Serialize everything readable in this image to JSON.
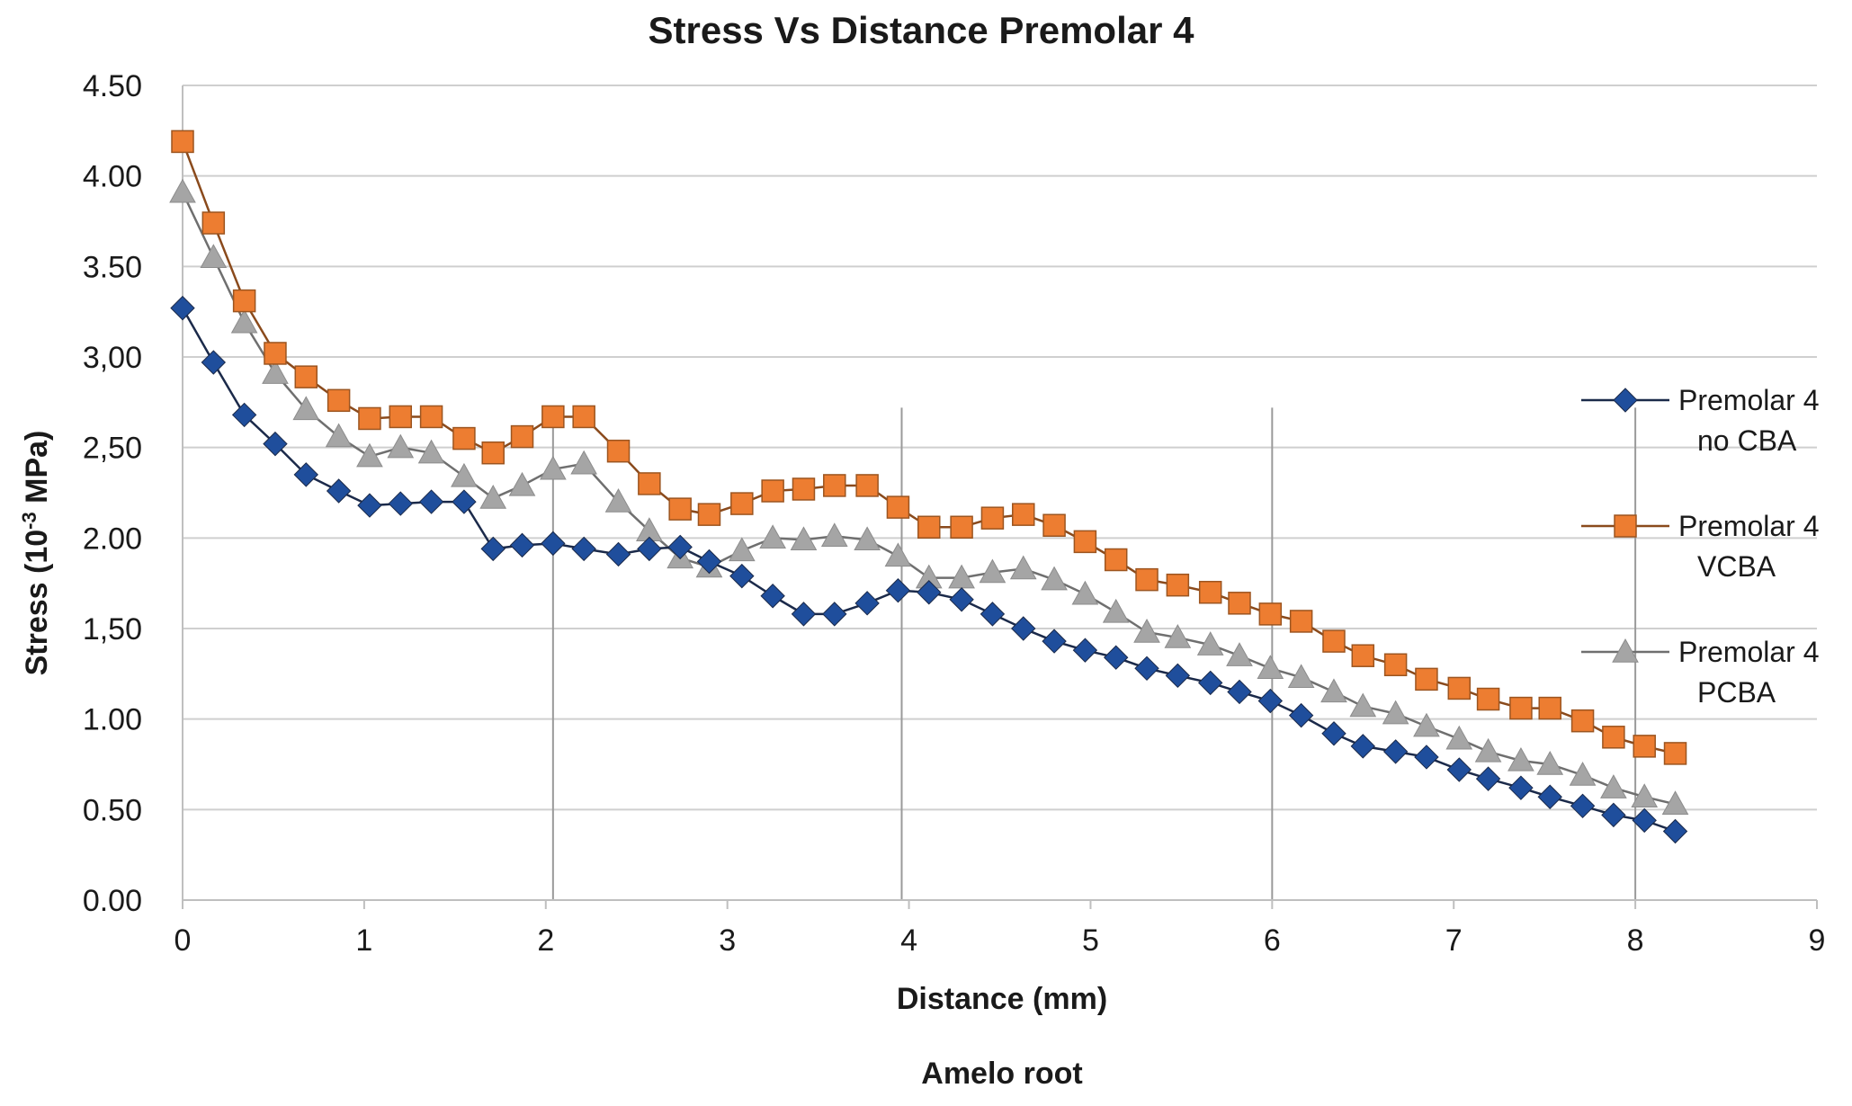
{
  "chart_data": {
    "type": "line",
    "title": "Stress Vs Distance  Premolar 4",
    "xlabel": "Distance (mm)",
    "ylabel_prefix": "Stress (10",
    "ylabel_exp": "-3",
    "ylabel_suffix": " MPa)",
    "sub_label": "Amelo root",
    "xlim": [
      0,
      9
    ],
    "ylim": [
      0,
      4.5
    ],
    "x_ticks": [
      "0",
      "1",
      "2",
      "3",
      "4",
      "5",
      "6",
      "7",
      "8",
      "9"
    ],
    "y_ticks": [
      "0.00",
      "0.50",
      "1.00",
      "1,50",
      "2.00",
      "2,50",
      "3,00",
      "3.50",
      "4.00",
      "4.50"
    ],
    "grid": "horizontal",
    "reference_lines_x": [
      2.04,
      3.96,
      6.0,
      8.0
    ],
    "legend_position": "right",
    "series": [
      {
        "name_line1": "Premolar 4",
        "name_line2": "no CBA",
        "color": "#1f4e9c",
        "line_color": "#1b2a4a",
        "marker": "diamond",
        "x": [
          0,
          0.17,
          0.34,
          0.51,
          0.68,
          0.86,
          1.03,
          1.2,
          1.37,
          1.55,
          1.71,
          1.87,
          2.04,
          2.21,
          2.4,
          2.57,
          2.74,
          2.9,
          3.08,
          3.25,
          3.42,
          3.59,
          3.77,
          3.94,
          4.11,
          4.29,
          4.46,
          4.63,
          4.8,
          4.97,
          5.14,
          5.31,
          5.48,
          5.66,
          5.82,
          5.99,
          6.16,
          6.34,
          6.5,
          6.68,
          6.85,
          7.03,
          7.19,
          7.37,
          7.53,
          7.71,
          7.88,
          8.05,
          8.22
        ],
        "y": [
          3.27,
          2.97,
          2.68,
          2.52,
          2.35,
          2.26,
          2.18,
          2.19,
          2.2,
          2.2,
          1.94,
          1.96,
          1.97,
          1.94,
          1.91,
          1.94,
          1.95,
          1.87,
          1.79,
          1.68,
          1.58,
          1.58,
          1.64,
          1.71,
          1.7,
          1.66,
          1.58,
          1.5,
          1.43,
          1.38,
          1.34,
          1.28,
          1.24,
          1.2,
          1.15,
          1.1,
          1.02,
          0.92,
          0.85,
          0.82,
          0.79,
          0.72,
          0.67,
          0.62,
          0.57,
          0.52,
          0.47,
          0.44,
          0.38
        ]
      },
      {
        "name_line1": "Premolar 4",
        "name_line2": "VCBA",
        "color": "#ed7d31",
        "line_color": "#8a4a1c",
        "marker": "square",
        "x": [
          0,
          0.17,
          0.34,
          0.51,
          0.68,
          0.86,
          1.03,
          1.2,
          1.37,
          1.55,
          1.71,
          1.87,
          2.04,
          2.21,
          2.4,
          2.57,
          2.74,
          2.9,
          3.08,
          3.25,
          3.42,
          3.59,
          3.77,
          3.94,
          4.11,
          4.29,
          4.46,
          4.63,
          4.8,
          4.97,
          5.14,
          5.31,
          5.48,
          5.66,
          5.82,
          5.99,
          6.16,
          6.34,
          6.5,
          6.68,
          6.85,
          7.03,
          7.19,
          7.37,
          7.53,
          7.71,
          7.88,
          8.05,
          8.22
        ],
        "y": [
          4.19,
          3.74,
          3.31,
          3.02,
          2.89,
          2.76,
          2.66,
          2.67,
          2.67,
          2.55,
          2.47,
          2.56,
          2.67,
          2.67,
          2.48,
          2.3,
          2.16,
          2.13,
          2.19,
          2.26,
          2.27,
          2.29,
          2.29,
          2.17,
          2.06,
          2.06,
          2.11,
          2.13,
          2.07,
          1.98,
          1.88,
          1.77,
          1.74,
          1.7,
          1.64,
          1.58,
          1.54,
          1.43,
          1.35,
          1.3,
          1.22,
          1.17,
          1.11,
          1.06,
          1.06,
          0.99,
          0.9,
          0.85,
          0.81
        ]
      },
      {
        "name_line1": "Premolar 4",
        "name_line2": "PCBA",
        "color": "#a5a5a5",
        "line_color": "#6f6f6f",
        "marker": "triangle",
        "x": [
          0,
          0.17,
          0.34,
          0.51,
          0.68,
          0.86,
          1.03,
          1.2,
          1.37,
          1.55,
          1.71,
          1.87,
          2.04,
          2.21,
          2.4,
          2.57,
          2.74,
          2.9,
          3.08,
          3.25,
          3.42,
          3.59,
          3.77,
          3.94,
          4.11,
          4.29,
          4.46,
          4.63,
          4.8,
          4.97,
          5.14,
          5.31,
          5.48,
          5.66,
          5.82,
          5.99,
          6.16,
          6.34,
          6.5,
          6.68,
          6.85,
          7.03,
          7.19,
          7.37,
          7.53,
          7.71,
          7.88,
          8.05,
          8.22
        ],
        "y": [
          3.91,
          3.55,
          3.19,
          2.91,
          2.71,
          2.56,
          2.45,
          2.5,
          2.47,
          2.34,
          2.22,
          2.29,
          2.38,
          2.41,
          2.2,
          2.04,
          1.89,
          1.84,
          1.93,
          2.0,
          1.99,
          2.01,
          1.99,
          1.9,
          1.78,
          1.78,
          1.81,
          1.83,
          1.77,
          1.69,
          1.59,
          1.48,
          1.45,
          1.41,
          1.35,
          1.28,
          1.23,
          1.15,
          1.07,
          1.03,
          0.96,
          0.89,
          0.82,
          0.77,
          0.75,
          0.69,
          0.62,
          0.57,
          0.53
        ]
      }
    ]
  }
}
